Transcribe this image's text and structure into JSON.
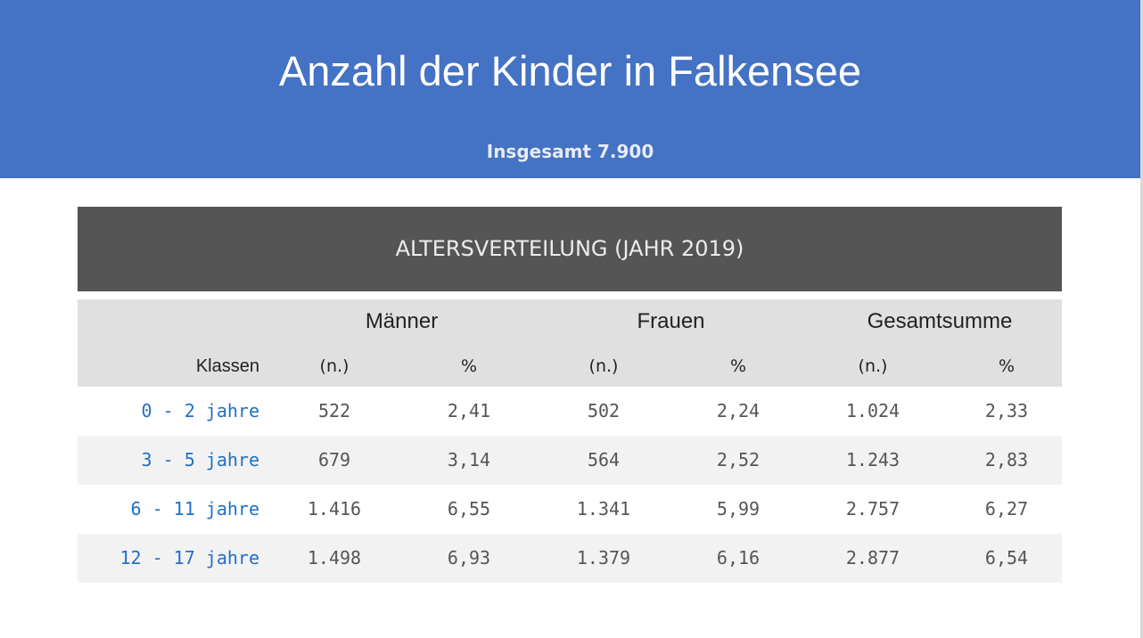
{
  "header": {
    "title": "Anzahl der Kinder in Falkensee",
    "subtitle": "Insgesamt 7.900",
    "background_color": "#4472c4"
  },
  "table": {
    "title": "ALTERSVERTEILUNG (JAHR 2019)",
    "groups": [
      "Männer",
      "Frauen",
      "Gesamtsumme"
    ],
    "columns": [
      "Klassen",
      "(n.)",
      "%",
      "(n.)",
      "%",
      "(n.)",
      "%"
    ],
    "rows": [
      {
        "klasse": "0 - 2 jahre",
        "m_n": "522",
        "m_p": "2,41",
        "f_n": "502",
        "f_p": "2,24",
        "g_n": "1.024",
        "g_p": "2,33"
      },
      {
        "klasse": "3 - 5 jahre",
        "m_n": "679",
        "m_p": "3,14",
        "f_n": "564",
        "f_p": "2,52",
        "g_n": "1.243",
        "g_p": "2,83"
      },
      {
        "klasse": "6 - 11 jahre",
        "m_n": "1.416",
        "m_p": "6,55",
        "f_n": "1.341",
        "f_p": "5,99",
        "g_n": "2.757",
        "g_p": "6,27"
      },
      {
        "klasse": "12 - 17 jahre",
        "m_n": "1.498",
        "m_p": "6,93",
        "f_n": "1.379",
        "f_p": "6,16",
        "g_n": "2.877",
        "g_p": "6,54"
      }
    ],
    "link_color": "#1f6fc7",
    "title_background": "#555555"
  }
}
